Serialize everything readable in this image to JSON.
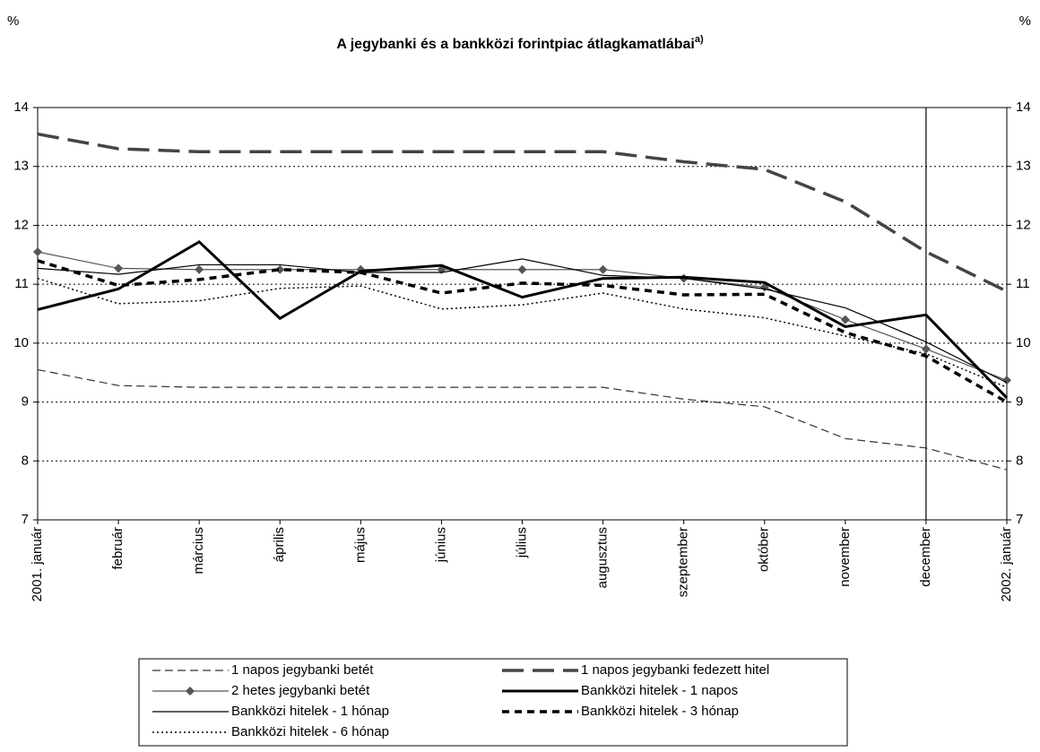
{
  "chart_data": {
    "type": "line",
    "title": "A jegybanki és a bankközi forintpiac átlagkamatlábai",
    "title_note": "a)",
    "y_unit_left": "%",
    "y_unit_right": "%",
    "categories": [
      "2001. január",
      "február",
      "március",
      "április",
      "május",
      "június",
      "július",
      "augusztus",
      "szeptember",
      "október",
      "november",
      "december",
      "2002. január"
    ],
    "ylim": [
      7,
      14
    ],
    "yticks": [
      7,
      8,
      9,
      10,
      11,
      12,
      13,
      14
    ],
    "grid": true,
    "vline_category": 11,
    "series": [
      {
        "name": "1 napos jegybanki betét",
        "color": "#333333",
        "dash": "9,5",
        "width": 1.2,
        "values": [
          9.55,
          9.28,
          9.25,
          9.25,
          9.25,
          9.25,
          9.25,
          9.25,
          9.05,
          8.92,
          8.38,
          8.22,
          7.85
        ]
      },
      {
        "name": "1 napos jegybanki fedezett hitel",
        "color": "#444444",
        "dash": "24,10",
        "width": 3.5,
        "values": [
          13.55,
          13.3,
          13.25,
          13.25,
          13.25,
          13.25,
          13.25,
          13.25,
          13.08,
          12.95,
          12.4,
          11.55,
          10.88
        ]
      },
      {
        "name": "2 hetes jegybanki betét",
        "color": "#555555",
        "dash": "",
        "width": 1.2,
        "marker": "diamond",
        "values": [
          11.55,
          11.27,
          11.25,
          11.25,
          11.25,
          11.25,
          11.25,
          11.25,
          11.1,
          10.95,
          10.4,
          9.9,
          9.37
        ]
      },
      {
        "name": "Bankközi hitelek - 1 napos",
        "color": "#000000",
        "dash": "",
        "width": 3,
        "values": [
          10.57,
          10.92,
          11.72,
          10.42,
          11.22,
          11.32,
          10.78,
          11.1,
          11.12,
          11.03,
          10.28,
          10.48,
          9.07
        ]
      },
      {
        "name": "Bankközi hitelek - 1 hónap",
        "color": "#000000",
        "dash": "",
        "width": 1.2,
        "values": [
          11.27,
          11.17,
          11.33,
          11.33,
          11.2,
          11.2,
          11.43,
          11.15,
          11.1,
          10.92,
          10.6,
          10.02,
          9.33
        ]
      },
      {
        "name": "Bankközi hitelek - 3 hónap",
        "color": "#000000",
        "dash": "8,6",
        "width": 3.5,
        "values": [
          11.4,
          10.98,
          11.08,
          11.25,
          11.2,
          10.85,
          11.02,
          10.98,
          10.82,
          10.83,
          10.18,
          9.78,
          9.0
        ]
      },
      {
        "name": "Bankközi hitelek - 6 hónap",
        "color": "#000000",
        "dash": "2,3",
        "width": 1.5,
        "values": [
          11.1,
          10.67,
          10.72,
          10.93,
          10.97,
          10.58,
          10.65,
          10.85,
          10.58,
          10.43,
          10.12,
          9.82,
          9.25
        ]
      }
    ]
  }
}
